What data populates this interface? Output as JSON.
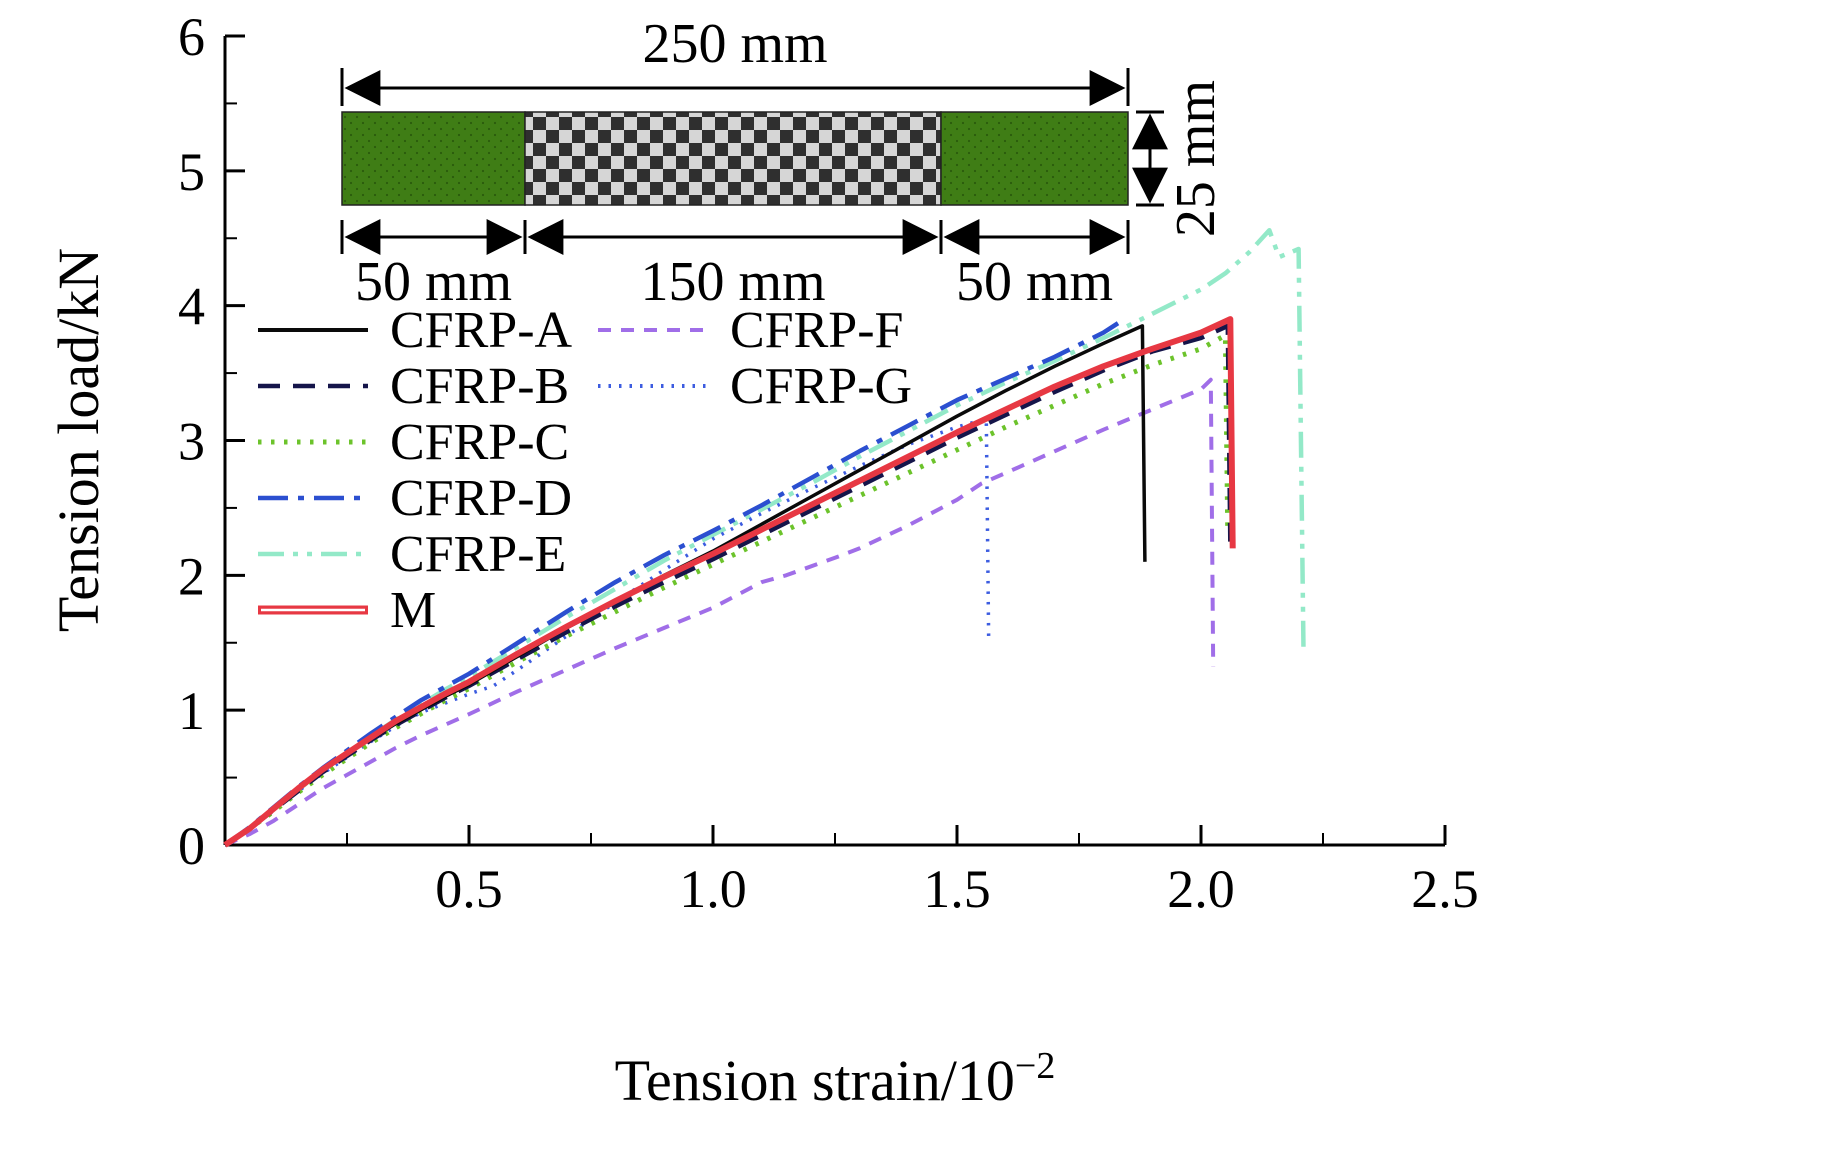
{
  "chart_data": {
    "type": "line",
    "title": "",
    "xlabel": "Tension strain/10−2",
    "xlabel_main": "Tension strain/10",
    "xlabel_sup": "−2",
    "ylabel": "Tension load/kN",
    "xlim": [
      0,
      2.5
    ],
    "ylim": [
      0,
      6
    ],
    "grid": false,
    "x_ticks": [
      {
        "v": 0.5,
        "label": "0.5"
      },
      {
        "v": 1.0,
        "label": "1.0"
      },
      {
        "v": 1.5,
        "label": "1.5"
      },
      {
        "v": 2.0,
        "label": "2.0"
      },
      {
        "v": 2.5,
        "label": "2.5"
      }
    ],
    "y_ticks": [
      {
        "v": 0,
        "label": "0"
      },
      {
        "v": 1,
        "label": "1"
      },
      {
        "v": 2,
        "label": "2"
      },
      {
        "v": 3,
        "label": "3"
      },
      {
        "v": 4,
        "label": "4"
      },
      {
        "v": 5,
        "label": "5"
      },
      {
        "v": 6,
        "label": "6"
      }
    ],
    "x_minor_step": 0.25,
    "y_minor_step": 0.5,
    "legend": {
      "columns": [
        [
          "CFRP-A",
          "CFRP-B",
          "CFRP-C",
          "CFRP-D",
          "CFRP-E",
          "M"
        ],
        [
          "CFRP-F",
          "CFRP-G"
        ]
      ]
    },
    "series": [
      {
        "name": "CFRP-E",
        "color": "#93e9c8",
        "width": 4.5,
        "dash": "26 9 5 9 5 9",
        "points": [
          [
            0,
            0
          ],
          [
            0.05,
            0.12
          ],
          [
            0.1,
            0.27
          ],
          [
            0.15,
            0.41
          ],
          [
            0.2,
            0.55
          ],
          [
            0.25,
            0.68
          ],
          [
            0.3,
            0.81
          ],
          [
            0.35,
            0.93
          ],
          [
            0.4,
            1.04
          ],
          [
            0.45,
            1.15
          ],
          [
            0.5,
            1.25
          ],
          [
            0.6,
            1.47
          ],
          [
            0.7,
            1.69
          ],
          [
            0.8,
            1.9
          ],
          [
            0.9,
            2.11
          ],
          [
            1.0,
            2.3
          ],
          [
            1.1,
            2.49
          ],
          [
            1.2,
            2.68
          ],
          [
            1.3,
            2.88
          ],
          [
            1.4,
            3.07
          ],
          [
            1.5,
            3.26
          ],
          [
            1.6,
            3.43
          ],
          [
            1.7,
            3.59
          ],
          [
            1.8,
            3.76
          ],
          [
            1.9,
            3.94
          ],
          [
            2.0,
            4.12
          ],
          [
            2.05,
            4.24
          ],
          [
            2.1,
            4.4
          ],
          [
            2.14,
            4.56
          ],
          [
            2.16,
            4.36
          ],
          [
            2.2,
            4.42
          ],
          [
            2.21,
            1.45
          ]
        ]
      },
      {
        "name": "CFRP-D",
        "color": "#2b4fd0",
        "width": 4.5,
        "dash": "30 10 6 10",
        "points": [
          [
            0,
            0
          ],
          [
            0.05,
            0.13
          ],
          [
            0.1,
            0.28
          ],
          [
            0.15,
            0.43
          ],
          [
            0.2,
            0.57
          ],
          [
            0.25,
            0.7
          ],
          [
            0.3,
            0.83
          ],
          [
            0.35,
            0.95
          ],
          [
            0.4,
            1.07
          ],
          [
            0.45,
            1.17
          ],
          [
            0.5,
            1.27
          ],
          [
            0.6,
            1.5
          ],
          [
            0.7,
            1.73
          ],
          [
            0.8,
            1.95
          ],
          [
            0.9,
            2.15
          ],
          [
            1.0,
            2.33
          ],
          [
            1.1,
            2.52
          ],
          [
            1.2,
            2.72
          ],
          [
            1.3,
            2.92
          ],
          [
            1.4,
            3.11
          ],
          [
            1.5,
            3.3
          ],
          [
            1.6,
            3.46
          ],
          [
            1.7,
            3.62
          ],
          [
            1.8,
            3.8
          ],
          [
            1.83,
            3.87
          ]
        ]
      },
      {
        "name": "CFRP-G",
        "color": "#3c5ce0",
        "width": 3.5,
        "dash": "2.5 8",
        "points": [
          [
            0,
            0
          ],
          [
            0.05,
            0.12
          ],
          [
            0.1,
            0.26
          ],
          [
            0.15,
            0.4
          ],
          [
            0.2,
            0.53
          ],
          [
            0.25,
            0.65
          ],
          [
            0.3,
            0.77
          ],
          [
            0.35,
            0.88
          ],
          [
            0.4,
            0.98
          ],
          [
            0.45,
            1.05
          ],
          [
            0.5,
            1.12
          ],
          [
            0.55,
            1.18
          ],
          [
            0.6,
            1.3
          ],
          [
            0.7,
            1.55
          ],
          [
            0.8,
            1.8
          ],
          [
            0.9,
            2.04
          ],
          [
            1.0,
            2.27
          ],
          [
            1.1,
            2.46
          ],
          [
            1.2,
            2.64
          ],
          [
            1.3,
            2.81
          ],
          [
            1.4,
            2.97
          ],
          [
            1.5,
            3.1
          ],
          [
            1.56,
            3.16
          ],
          [
            1.565,
            1.5
          ]
        ]
      },
      {
        "name": "CFRP-C",
        "color": "#6cc32b",
        "width": 5,
        "dash": "3.5 9.5",
        "points": [
          [
            0,
            0
          ],
          [
            0.05,
            0.12
          ],
          [
            0.1,
            0.25
          ],
          [
            0.15,
            0.39
          ],
          [
            0.2,
            0.52
          ],
          [
            0.25,
            0.64
          ],
          [
            0.3,
            0.76
          ],
          [
            0.35,
            0.87
          ],
          [
            0.4,
            0.97
          ],
          [
            0.45,
            1.07
          ],
          [
            0.5,
            1.16
          ],
          [
            0.6,
            1.36
          ],
          [
            0.7,
            1.55
          ],
          [
            0.8,
            1.73
          ],
          [
            0.9,
            1.91
          ],
          [
            1.0,
            2.08
          ],
          [
            1.1,
            2.25
          ],
          [
            1.2,
            2.42
          ],
          [
            1.3,
            2.59
          ],
          [
            1.4,
            2.76
          ],
          [
            1.5,
            2.93
          ],
          [
            1.6,
            3.1
          ],
          [
            1.7,
            3.26
          ],
          [
            1.8,
            3.42
          ],
          [
            1.9,
            3.56
          ],
          [
            2.0,
            3.68
          ],
          [
            2.05,
            3.78
          ],
          [
            2.055,
            2.3
          ]
        ]
      },
      {
        "name": "CFRP-F",
        "color": "#a06ee8",
        "width": 4,
        "dash": "13 10",
        "points": [
          [
            0,
            0
          ],
          [
            0.05,
            0.08
          ],
          [
            0.1,
            0.18
          ],
          [
            0.15,
            0.3
          ],
          [
            0.2,
            0.42
          ],
          [
            0.25,
            0.52
          ],
          [
            0.3,
            0.62
          ],
          [
            0.35,
            0.72
          ],
          [
            0.4,
            0.81
          ],
          [
            0.45,
            0.89
          ],
          [
            0.5,
            0.97
          ],
          [
            0.6,
            1.14
          ],
          [
            0.7,
            1.3
          ],
          [
            0.8,
            1.46
          ],
          [
            0.9,
            1.61
          ],
          [
            1.0,
            1.76
          ],
          [
            1.1,
            1.95
          ],
          [
            1.15,
            2.0
          ],
          [
            1.25,
            2.13
          ],
          [
            1.3,
            2.2
          ],
          [
            1.4,
            2.37
          ],
          [
            1.5,
            2.56
          ],
          [
            1.55,
            2.68
          ],
          [
            1.6,
            2.76
          ],
          [
            1.7,
            2.92
          ],
          [
            1.8,
            3.08
          ],
          [
            1.9,
            3.23
          ],
          [
            2.0,
            3.38
          ],
          [
            2.02,
            3.45
          ],
          [
            2.025,
            1.32
          ]
        ]
      },
      {
        "name": "CFRP-B",
        "color": "#15154a",
        "width": 4.5,
        "dash": "22 13",
        "points": [
          [
            0,
            0
          ],
          [
            0.05,
            0.12
          ],
          [
            0.1,
            0.26
          ],
          [
            0.15,
            0.4
          ],
          [
            0.2,
            0.54
          ],
          [
            0.25,
            0.66
          ],
          [
            0.3,
            0.78
          ],
          [
            0.35,
            0.89
          ],
          [
            0.4,
            0.99
          ],
          [
            0.45,
            1.09
          ],
          [
            0.5,
            1.18
          ],
          [
            0.6,
            1.38
          ],
          [
            0.7,
            1.58
          ],
          [
            0.8,
            1.77
          ],
          [
            0.9,
            1.95
          ],
          [
            1.0,
            2.12
          ],
          [
            1.1,
            2.3
          ],
          [
            1.2,
            2.48
          ],
          [
            1.3,
            2.66
          ],
          [
            1.4,
            2.84
          ],
          [
            1.5,
            3.02
          ],
          [
            1.6,
            3.19
          ],
          [
            1.7,
            3.36
          ],
          [
            1.8,
            3.52
          ],
          [
            1.9,
            3.66
          ],
          [
            2.0,
            3.76
          ],
          [
            2.055,
            3.85
          ],
          [
            2.06,
            2.25
          ]
        ]
      },
      {
        "name": "CFRP-A",
        "color": "#0a0a0a",
        "width": 3.5,
        "dash": "",
        "points": [
          [
            0,
            0
          ],
          [
            0.05,
            0.13
          ],
          [
            0.1,
            0.27
          ],
          [
            0.15,
            0.42
          ],
          [
            0.2,
            0.56
          ],
          [
            0.25,
            0.68
          ],
          [
            0.3,
            0.79
          ],
          [
            0.35,
            0.9
          ],
          [
            0.4,
            1.0
          ],
          [
            0.45,
            1.1
          ],
          [
            0.5,
            1.19
          ],
          [
            0.6,
            1.4
          ],
          [
            0.7,
            1.61
          ],
          [
            0.8,
            1.8
          ],
          [
            0.9,
            2.0
          ],
          [
            1.0,
            2.18
          ],
          [
            1.1,
            2.38
          ],
          [
            1.2,
            2.58
          ],
          [
            1.3,
            2.78
          ],
          [
            1.4,
            2.98
          ],
          [
            1.5,
            3.18
          ],
          [
            1.6,
            3.37
          ],
          [
            1.7,
            3.55
          ],
          [
            1.8,
            3.72
          ],
          [
            1.88,
            3.85
          ],
          [
            1.885,
            2.1
          ]
        ]
      },
      {
        "name": "M",
        "color": "#e73843",
        "width": 6,
        "dash": "",
        "points": [
          [
            0,
            0
          ],
          [
            0.05,
            0.12
          ],
          [
            0.1,
            0.27
          ],
          [
            0.15,
            0.42
          ],
          [
            0.2,
            0.56
          ],
          [
            0.25,
            0.68
          ],
          [
            0.3,
            0.8
          ],
          [
            0.35,
            0.92
          ],
          [
            0.4,
            1.02
          ],
          [
            0.45,
            1.12
          ],
          [
            0.5,
            1.21
          ],
          [
            0.6,
            1.42
          ],
          [
            0.7,
            1.62
          ],
          [
            0.8,
            1.81
          ],
          [
            0.9,
            1.99
          ],
          [
            1.0,
            2.16
          ],
          [
            1.1,
            2.34
          ],
          [
            1.2,
            2.52
          ],
          [
            1.3,
            2.7
          ],
          [
            1.4,
            2.88
          ],
          [
            1.5,
            3.06
          ],
          [
            1.6,
            3.23
          ],
          [
            1.7,
            3.4
          ],
          [
            1.8,
            3.55
          ],
          [
            1.9,
            3.68
          ],
          [
            2.0,
            3.8
          ],
          [
            2.06,
            3.9
          ],
          [
            2.065,
            2.2
          ]
        ]
      }
    ],
    "inset": {
      "total_label": "250 mm",
      "segment_labels": [
        "50 mm",
        "150 mm",
        "50 mm"
      ],
      "width_label": "25 mm",
      "tab_color": "#3f7d15",
      "tab_dot_color": "#2a5a0c",
      "weave_dark": "#2f2f2f",
      "weave_light": "#d6d6d6"
    }
  }
}
